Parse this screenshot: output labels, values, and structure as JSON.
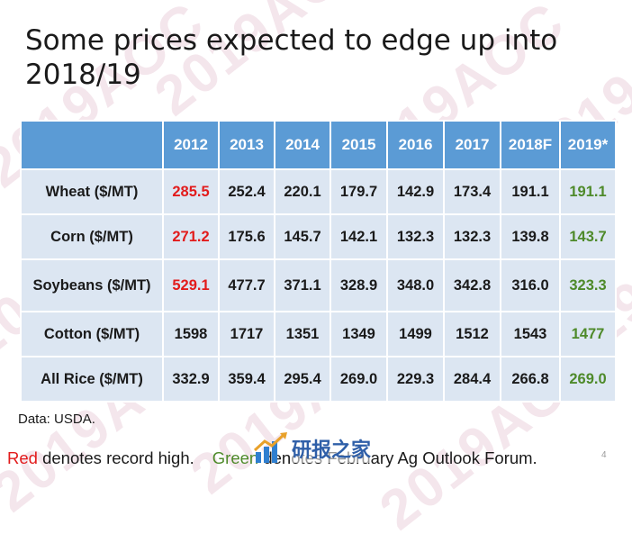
{
  "slide": {
    "title": "Some prices expected to edge up into 2018/19",
    "watermark": "2019AOC",
    "source": "Data: USDA.",
    "footnote": {
      "red_word": "Red",
      "red_text": " denotes record high.",
      "green_word": "Green",
      "green_text": " denotes February Ag Outlook Forum."
    },
    "logo_text": "研报之家",
    "page_number": "4"
  },
  "table": {
    "headers": [
      "",
      "2012",
      "2013",
      "2014",
      "2015",
      "2016",
      "2017",
      "2018F",
      "2019*"
    ],
    "rows": [
      {
        "label": "Wheat ($/MT)",
        "values": [
          "285.5",
          "252.4",
          "220.1",
          "179.7",
          "142.9",
          "173.4",
          "191.1",
          "191.1"
        ]
      },
      {
        "label": "Corn ($/MT)",
        "values": [
          "271.2",
          "175.6",
          "145.7",
          "142.1",
          "132.3",
          "132.3",
          "139.8",
          "143.7"
        ]
      },
      {
        "label": "Soybeans ($/MT)",
        "values": [
          "529.1",
          "477.7",
          "371.1",
          "328.9",
          "348.0",
          "342.8",
          "316.0",
          "323.3"
        ]
      },
      {
        "label": "Cotton ($/MT)",
        "values": [
          "1598",
          "1717",
          "1351",
          "1349",
          "1499",
          "1512",
          "1543",
          "1477"
        ]
      },
      {
        "label": "All Rice ($/MT)",
        "values": [
          "332.9",
          "359.4",
          "295.4",
          "269.0",
          "229.3",
          "284.4",
          "266.8",
          "269.0"
        ]
      }
    ]
  },
  "colors": {
    "header_bg": "#5b9bd5",
    "cell_bg": "#dce6f2",
    "record_high": "#e21b1b",
    "outlook_forum": "#4e8a2a"
  }
}
